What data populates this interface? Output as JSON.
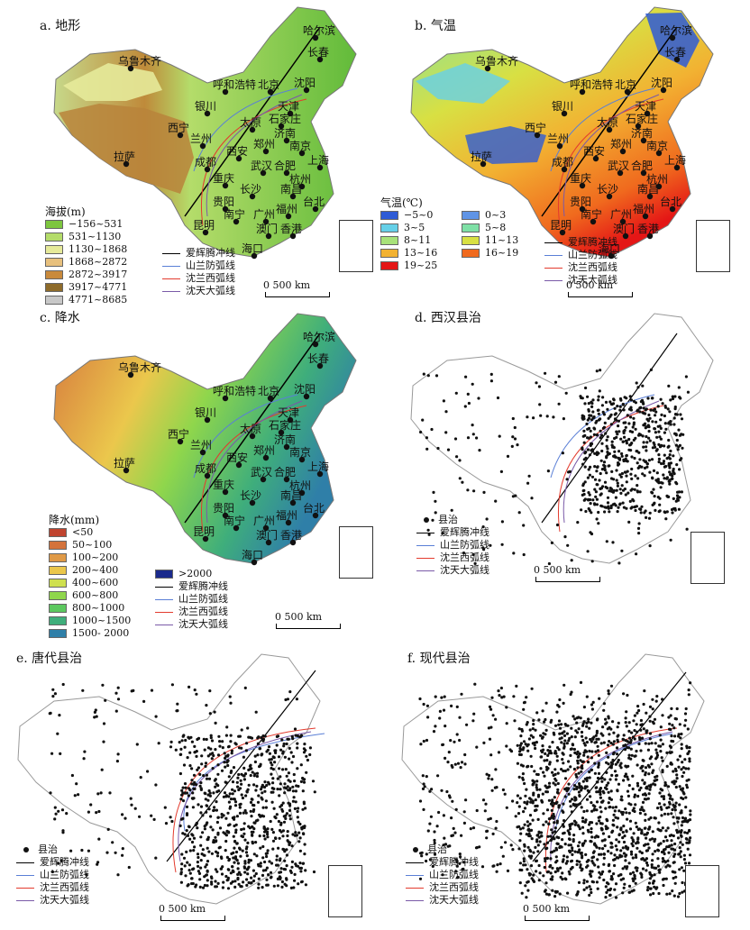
{
  "panels": {
    "a": {
      "title": "a. 地形"
    },
    "b": {
      "title": "b. 气温"
    },
    "c": {
      "title": "c. 降水"
    },
    "d": {
      "title": "d. 西汉县治"
    },
    "e": {
      "title": "e. 唐代县治"
    },
    "f": {
      "title": "f. 现代县治"
    }
  },
  "cities": [
    "乌鲁木齐",
    "哈尔滨",
    "长春",
    "沈阳",
    "呼和浩特",
    "北京",
    "天津",
    "银川",
    "石家庄",
    "太原",
    "济南",
    "西宁",
    "兰州",
    "郑州",
    "南京",
    "西安",
    "上海",
    "合肥",
    "拉萨",
    "成都",
    "武汉",
    "杭州",
    "重庆",
    "长沙",
    "南昌",
    "贵阳",
    "福州",
    "台北",
    "昆明",
    "南宁",
    "广州",
    "澳门",
    "香港",
    "海口"
  ],
  "legend_terrain": {
    "title": "海拔(m)",
    "items": [
      "−156~531",
      "531~1130",
      "1130~1868",
      "1868~2872",
      "2872~3917",
      "3917~4771",
      "4771~8685"
    ],
    "colors": [
      "#7dc63f",
      "#b4dc6a",
      "#e6ea9a",
      "#e7c07d",
      "#c98a3c",
      "#8e6b2a",
      "#c8c8c8"
    ]
  },
  "legend_temp": {
    "title": "气温(℃)",
    "items": [
      "−5~0",
      "0~3",
      "3~5",
      "5~8",
      "8~11",
      "11~13",
      "13~16",
      "16~19",
      "19~25"
    ],
    "colors": [
      "#2e5bd6",
      "#5f94e6",
      "#66d0e8",
      "#7fe0a6",
      "#a8e27a",
      "#d8e043",
      "#f2b232",
      "#f06a1e",
      "#e41616"
    ]
  },
  "legend_precip": {
    "title": "降水(mm)",
    "items": [
      "<50",
      "50~100",
      "100~200",
      "200~400",
      "400~600",
      "600~800",
      "800~1000",
      "1000~1500",
      "1500- 2000",
      ">2000"
    ],
    "colors": [
      "#c0442f",
      "#d4733c",
      "#e09a47",
      "#ebc74c",
      "#cfe04f",
      "#8fd64c",
      "#5cc85f",
      "#3fae7b",
      "#2f7fa8",
      "#1a2a8c"
    ]
  },
  "lines": {
    "items": [
      "爱辉腾冲线",
      "山兰防弧线",
      "沈兰西弧线",
      "沈天大弧线"
    ],
    "colors": [
      "#000000",
      "#5a7fd6",
      "#e33b2e",
      "#7a5aa8"
    ]
  },
  "point_legend": "县治",
  "scale_label": "0 500 km"
}
